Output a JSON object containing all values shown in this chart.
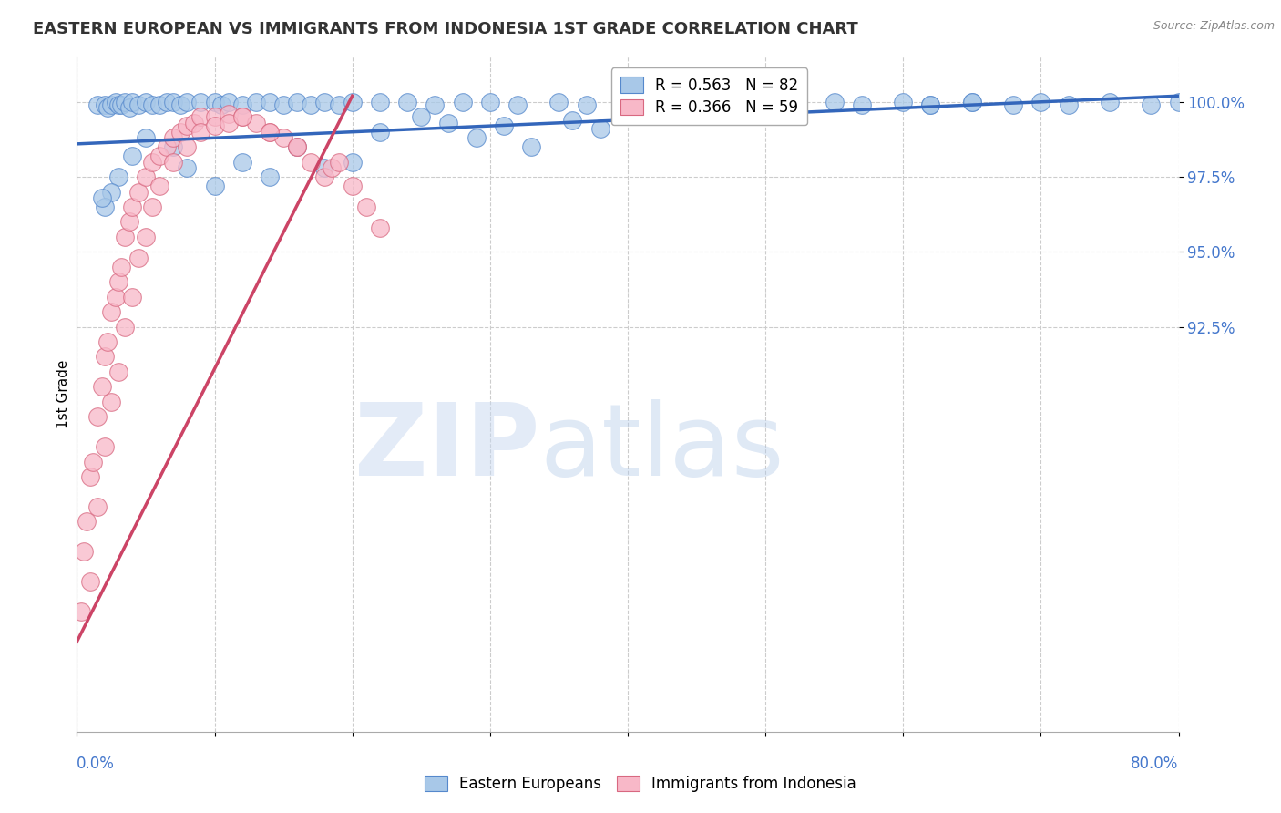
{
  "title": "EASTERN EUROPEAN VS IMMIGRANTS FROM INDONESIA 1ST GRADE CORRELATION CHART",
  "source": "Source: ZipAtlas.com",
  "ylabel": "1st Grade",
  "xlim": [
    0.0,
    80.0
  ],
  "ylim": [
    79.0,
    101.5
  ],
  "ytick_vals": [
    92.5,
    95.0,
    97.5,
    100.0
  ],
  "ytick_labels": [
    "92.5%",
    "95.0%",
    "97.5%",
    "100.0%"
  ],
  "legend_blue_label": "R = 0.563   N = 82",
  "legend_pink_label": "R = 0.366   N = 59",
  "blue_face": "#a8c8e8",
  "blue_edge": "#5588cc",
  "pink_face": "#f8b8c8",
  "pink_edge": "#d86880",
  "trend_blue": "#3366bb",
  "trend_pink": "#cc4466",
  "watermark_zip": "ZIP",
  "watermark_atlas": "atlas",
  "background_color": "#ffffff",
  "grid_color": "#cccccc",
  "blue_trend_x": [
    0.0,
    80.0
  ],
  "blue_trend_y": [
    98.6,
    100.2
  ],
  "pink_trend_x": [
    0.0,
    20.0
  ],
  "pink_trend_y": [
    82.0,
    100.2
  ],
  "blue_x": [
    1.5,
    2.0,
    2.2,
    2.5,
    2.8,
    3.0,
    3.2,
    3.5,
    3.8,
    4.0,
    4.5,
    5.0,
    5.5,
    6.0,
    6.5,
    7.0,
    7.5,
    8.0,
    9.0,
    10.0,
    10.5,
    11.0,
    12.0,
    13.0,
    14.0,
    15.0,
    16.0,
    17.0,
    18.0,
    19.0,
    20.0,
    22.0,
    24.0,
    26.0,
    28.0,
    30.0,
    32.0,
    35.0,
    37.0,
    40.0,
    43.0,
    45.0,
    47.0,
    50.0,
    52.0,
    55.0,
    57.0,
    60.0,
    62.0,
    65.0,
    68.0,
    70.0,
    72.0,
    75.0,
    78.0,
    80.0,
    62.0,
    65.0,
    42.0,
    46.0,
    25.0,
    27.0,
    22.0,
    29.0,
    31.0,
    33.0,
    38.0,
    36.0,
    20.0,
    18.0,
    16.0,
    14.0,
    12.0,
    10.0,
    8.0,
    7.0,
    5.0,
    4.0,
    3.0,
    2.5,
    2.0,
    1.8
  ],
  "blue_y": [
    99.9,
    99.9,
    99.8,
    99.9,
    100.0,
    99.9,
    99.9,
    100.0,
    99.8,
    100.0,
    99.9,
    100.0,
    99.9,
    99.9,
    100.0,
    100.0,
    99.9,
    100.0,
    100.0,
    100.0,
    99.9,
    100.0,
    99.9,
    100.0,
    100.0,
    99.9,
    100.0,
    99.9,
    100.0,
    99.9,
    100.0,
    100.0,
    100.0,
    99.9,
    100.0,
    100.0,
    99.9,
    100.0,
    99.9,
    100.0,
    100.0,
    99.9,
    100.0,
    100.0,
    99.9,
    100.0,
    99.9,
    100.0,
    99.9,
    100.0,
    99.9,
    100.0,
    99.9,
    100.0,
    99.9,
    100.0,
    99.9,
    100.0,
    99.9,
    100.0,
    99.5,
    99.3,
    99.0,
    98.8,
    99.2,
    98.5,
    99.1,
    99.4,
    98.0,
    97.8,
    98.5,
    97.5,
    98.0,
    97.2,
    97.8,
    98.5,
    98.8,
    98.2,
    97.5,
    97.0,
    96.5,
    96.8
  ],
  "pink_x": [
    0.3,
    0.5,
    0.7,
    1.0,
    1.2,
    1.5,
    1.8,
    2.0,
    2.2,
    2.5,
    2.8,
    3.0,
    3.2,
    3.5,
    3.8,
    4.0,
    4.5,
    5.0,
    5.5,
    6.0,
    6.5,
    7.0,
    7.5,
    8.0,
    8.5,
    9.0,
    10.0,
    11.0,
    12.0,
    13.0,
    14.0,
    15.0,
    16.0,
    17.0,
    18.0,
    18.5,
    19.0,
    20.0,
    21.0,
    22.0,
    1.0,
    1.5,
    2.0,
    2.5,
    3.0,
    3.5,
    4.0,
    4.5,
    5.0,
    5.5,
    6.0,
    7.0,
    8.0,
    9.0,
    10.0,
    11.0,
    12.0,
    14.0,
    16.0
  ],
  "pink_y": [
    83.0,
    85.0,
    86.0,
    87.5,
    88.0,
    89.5,
    90.5,
    91.5,
    92.0,
    93.0,
    93.5,
    94.0,
    94.5,
    95.5,
    96.0,
    96.5,
    97.0,
    97.5,
    98.0,
    98.2,
    98.5,
    98.8,
    99.0,
    99.2,
    99.3,
    99.5,
    99.5,
    99.6,
    99.5,
    99.3,
    99.0,
    98.8,
    98.5,
    98.0,
    97.5,
    97.8,
    98.0,
    97.2,
    96.5,
    95.8,
    84.0,
    86.5,
    88.5,
    90.0,
    91.0,
    92.5,
    93.5,
    94.8,
    95.5,
    96.5,
    97.2,
    98.0,
    98.5,
    99.0,
    99.2,
    99.3,
    99.5,
    99.0,
    98.5
  ]
}
